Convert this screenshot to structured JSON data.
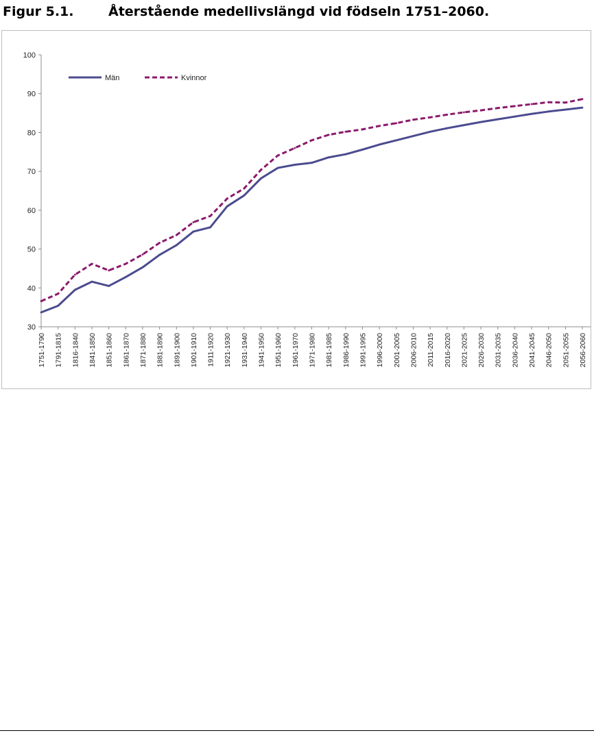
{
  "figure": {
    "number": "Figur 5.1.",
    "title": "Återstående medellivslängd vid födseln 1751–2060."
  },
  "colors": {
    "men": "#4b4b8f",
    "women": "#8b1a6b",
    "axis": "#8c8c8c",
    "frame": "#bdbdbd"
  },
  "chart_data": {
    "type": "line",
    "title": "",
    "xlabel": "",
    "ylabel": "",
    "ylim": [
      30,
      100
    ],
    "yticks": [
      30,
      40,
      50,
      60,
      70,
      80,
      90,
      100
    ],
    "grid": false,
    "legend_position": "top-left",
    "categories": [
      "1751-1790",
      "1791-1815",
      "1816-1840",
      "1841-1850",
      "1851-1860",
      "1861-1870",
      "1871-1880",
      "1881-1890",
      "1891-1900",
      "1901-1910",
      "1911-1920",
      "1921-1930",
      "1931-1940",
      "1941-1950",
      "1951-1960",
      "1961-1970",
      "1971-1980",
      "1981-1985",
      "1986-1990",
      "1991-1995",
      "1996-2000",
      "2001-2005",
      "2006-2010",
      "2011-2015",
      "2016-2020",
      "2021-2025",
      "2026-2030",
      "2031-2035",
      "2036-2040",
      "2041-2045",
      "2046-2050",
      "2051-2055",
      "2056-2060"
    ],
    "series": [
      {
        "name": "Män",
        "style": "solid",
        "values": [
          33.7,
          35.4,
          39.5,
          41.6,
          40.5,
          42.8,
          45.3,
          48.5,
          51.0,
          54.5,
          55.6,
          61.0,
          63.8,
          68.2,
          70.9,
          71.7,
          72.2,
          73.6,
          74.4,
          75.6,
          76.9,
          78.0,
          79.1,
          80.2,
          81.1,
          81.9,
          82.7,
          83.4,
          84.1,
          84.8,
          85.4,
          85.9,
          86.4
        ]
      },
      {
        "name": "Kvinnor",
        "style": "dashed",
        "values": [
          36.6,
          38.5,
          43.4,
          46.2,
          44.5,
          46.2,
          48.6,
          51.6,
          53.6,
          56.9,
          58.5,
          63.0,
          65.6,
          70.4,
          74.1,
          76.0,
          78.0,
          79.4,
          80.2,
          80.8,
          81.7,
          82.4,
          83.3,
          83.9,
          84.6,
          85.2,
          85.7,
          86.3,
          86.8,
          87.3,
          87.8,
          87.7,
          88.6
        ]
      }
    ]
  }
}
